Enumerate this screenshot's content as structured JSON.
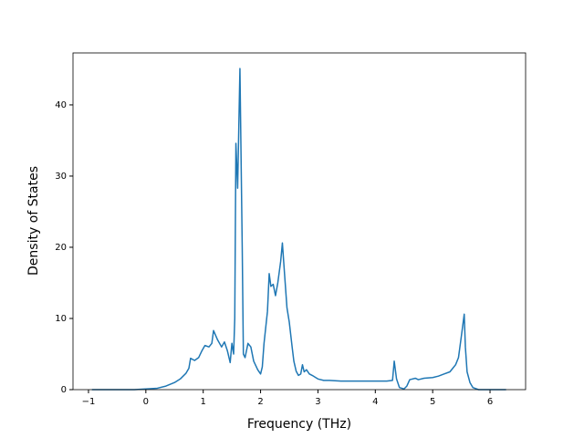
{
  "chart_data": {
    "type": "line",
    "xlabel": "Frequency (THz)",
    "ylabel": "Density of States",
    "color": "#1f77b4",
    "x": [
      -0.94,
      -0.2,
      0,
      0.2,
      0.35,
      0.5,
      0.6,
      0.7,
      0.75,
      0.78,
      0.85,
      0.92,
      0.98,
      1.03,
      1.1,
      1.15,
      1.18,
      1.25,
      1.32,
      1.37,
      1.42,
      1.47,
      1.5,
      1.53,
      1.55,
      1.57,
      1.6,
      1.64,
      1.68,
      1.7,
      1.73,
      1.78,
      1.83,
      1.88,
      1.95,
      2.0,
      2.03,
      2.06,
      2.12,
      2.15,
      2.18,
      2.22,
      2.26,
      2.3,
      2.35,
      2.38,
      2.42,
      2.46,
      2.5,
      2.55,
      2.58,
      2.62,
      2.66,
      2.7,
      2.73,
      2.76,
      2.8,
      2.85,
      2.9,
      3.0,
      3.1,
      3.2,
      3.4,
      3.8,
      4.2,
      4.3,
      4.33,
      4.37,
      4.42,
      4.5,
      4.55,
      4.6,
      4.7,
      4.75,
      4.85,
      5.0,
      5.1,
      5.2,
      5.3,
      5.35,
      5.4,
      5.45,
      5.5,
      5.55,
      5.57,
      5.6,
      5.65,
      5.7,
      5.8,
      6.28
    ],
    "values": [
      0,
      0,
      0.1,
      0.2,
      0.5,
      1.0,
      1.5,
      2.3,
      3.0,
      4.4,
      4.1,
      4.5,
      5.5,
      6.2,
      6.0,
      6.5,
      8.3,
      7.0,
      6.0,
      6.7,
      5.5,
      3.8,
      6.5,
      5.0,
      10,
      34.6,
      28.3,
      45.1,
      20,
      5.0,
      4.5,
      6.5,
      6.0,
      4.0,
      2.8,
      2.2,
      3.2,
      6.5,
      11,
      16.3,
      14.5,
      14.8,
      13.2,
      15,
      18,
      20.6,
      16,
      11.5,
      9.5,
      6,
      4,
      2.6,
      2.0,
      2.2,
      3.5,
      2.5,
      2.8,
      2.2,
      2.0,
      1.5,
      1.3,
      1.3,
      1.2,
      1.2,
      1.2,
      1.3,
      4.0,
      1.5,
      0.3,
      0.1,
      0.5,
      1.4,
      1.6,
      1.4,
      1.6,
      1.7,
      1.9,
      2.2,
      2.5,
      3.0,
      3.5,
      4.5,
      7.5,
      10.6,
      6,
      2.5,
      1.0,
      0.3,
      0,
      0
    ],
    "xlim": [
      -1.27,
      6.62
    ],
    "ylim": [
      0,
      47.3
    ],
    "xticks": [
      {
        "value": -1,
        "label": "−1"
      },
      0,
      1,
      2,
      3,
      4,
      5,
      6
    ],
    "yticks": [
      0,
      10,
      20,
      30,
      40
    ]
  }
}
